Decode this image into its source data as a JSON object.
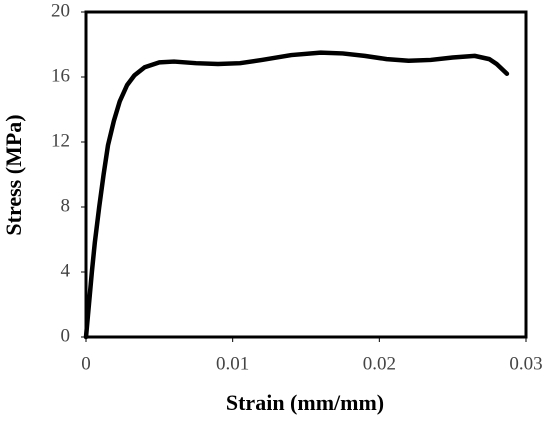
{
  "chart_data": {
    "type": "line",
    "x_label": "Strain (mm/mm)",
    "y_label": "Stress (MPa)",
    "series": [
      {
        "name": "Stress",
        "color": "#000000",
        "x": [
          0,
          0.0002,
          0.0004,
          0.0006,
          0.0009,
          0.0012,
          0.0015,
          0.0019,
          0.0023,
          0.0028,
          0.0033,
          0.004,
          0.005,
          0.006,
          0.0075,
          0.009,
          0.0105,
          0.012,
          0.014,
          0.016,
          0.0175,
          0.019,
          0.0205,
          0.022,
          0.0235,
          0.025,
          0.0265,
          0.0275,
          0.028,
          0.0287
        ],
        "y": [
          0,
          2,
          4,
          5.8,
          8,
          10,
          11.8,
          13.3,
          14.5,
          15.5,
          16.1,
          16.6,
          16.9,
          16.95,
          16.85,
          16.8,
          16.85,
          17.05,
          17.35,
          17.5,
          17.45,
          17.3,
          17.1,
          17.0,
          17.05,
          17.2,
          17.3,
          17.1,
          16.8,
          16.2
        ]
      }
    ],
    "xlim": [
      0,
      0.03
    ],
    "ylim": [
      0,
      20
    ],
    "xticks": [
      0,
      0.01,
      0.02,
      0.03
    ],
    "yticks": [
      0,
      4,
      8,
      12,
      16,
      20
    ],
    "grid": false
  }
}
